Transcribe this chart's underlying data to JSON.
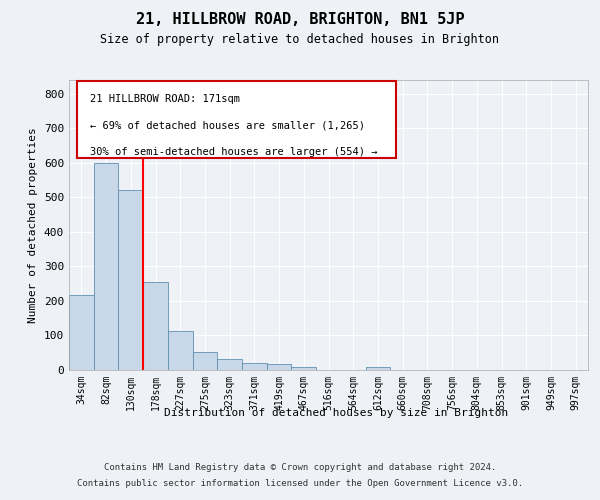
{
  "title": "21, HILLBROW ROAD, BRIGHTON, BN1 5JP",
  "subtitle": "Size of property relative to detached houses in Brighton",
  "xlabel": "Distribution of detached houses by size in Brighton",
  "ylabel": "Number of detached properties",
  "footer_line1": "Contains HM Land Registry data © Crown copyright and database right 2024.",
  "footer_line2": "Contains public sector information licensed under the Open Government Licence v3.0.",
  "categories": [
    "34sqm",
    "82sqm",
    "130sqm",
    "178sqm",
    "227sqm",
    "275sqm",
    "323sqm",
    "371sqm",
    "419sqm",
    "467sqm",
    "516sqm",
    "564sqm",
    "612sqm",
    "660sqm",
    "708sqm",
    "756sqm",
    "804sqm",
    "853sqm",
    "901sqm",
    "949sqm",
    "997sqm"
  ],
  "values": [
    218,
    600,
    522,
    255,
    113,
    52,
    31,
    20,
    16,
    10,
    0,
    0,
    10,
    0,
    0,
    0,
    0,
    0,
    0,
    0,
    0
  ],
  "bar_color": "#c8d8e8",
  "bar_edgecolor": "#6090b0",
  "redline_x": 2.5,
  "annotation_line1": "21 HILLBROW ROAD: 171sqm",
  "annotation_line2": "← 69% of detached houses are smaller (1,265)",
  "annotation_line3": "30% of semi-detached houses are larger (554) →",
  "ylim": [
    0,
    840
  ],
  "yticks": [
    0,
    100,
    200,
    300,
    400,
    500,
    600,
    700,
    800
  ],
  "bg_color": "#eef2f7",
  "plot_bg_color": "#eef2f7",
  "grid_color": "#ffffff",
  "annotation_box_color": "#ffffff",
  "annotation_box_edgecolor": "#cc0000"
}
